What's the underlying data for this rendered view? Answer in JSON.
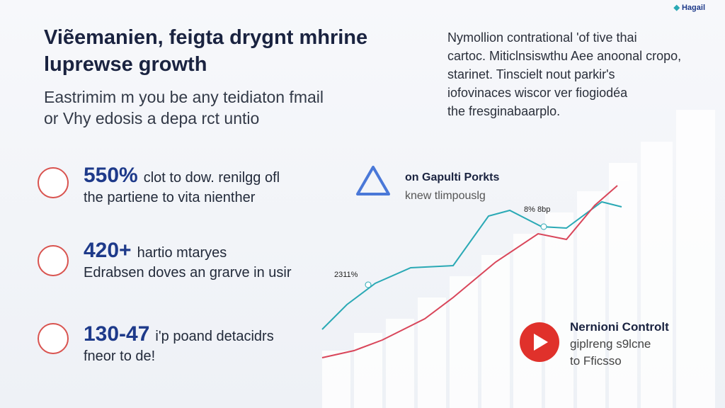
{
  "logo": "Hagail",
  "header": {
    "title_lines": [
      "Viẽemanien, feigta drygnt mhrine",
      "luprewse growth"
    ],
    "subtitle_lines": [
      "Eastrimim m you be any teidiaton fmail",
      "or Vhy edosis a depa rct untio"
    ]
  },
  "intro_lines": [
    "Nymollion contrational 'of tive thai",
    "cartoc. Miticlnsiswthu Aee anoonal cropo,",
    "starinet. Tinscielt nout parkir's",
    "iofovinaces wiscor ver fiogiodéa",
    "the fresginabaarplo."
  ],
  "stats": [
    {
      "figure": "550%",
      "lines": [
        "clot to dow. renilgg ofl",
        "the partiene to vita nienther"
      ]
    },
    {
      "figure": "420+",
      "lines": [
        "hartio mtaryes",
        "Edrabsen doves an grarve in usir"
      ]
    },
    {
      "figure": "130-47",
      "lines": [
        "i'p poand detacidrs",
        "fneor to de!"
      ]
    }
  ],
  "callout": {
    "title": "on Gapulti Porkts",
    "text": "knew tlimpouslg"
  },
  "annotations": [
    "2311%",
    "8% 8bp"
  ],
  "video": {
    "title": "Nernioni Controlt",
    "lines": [
      "giplreng s9lcne",
      "to Fficsso"
    ]
  }
}
